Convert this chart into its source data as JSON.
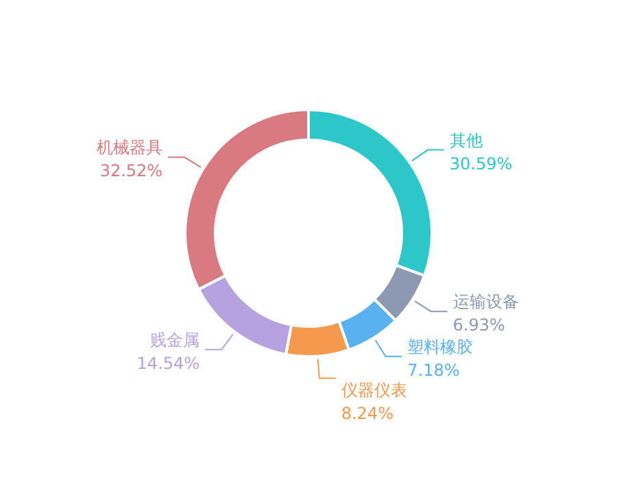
{
  "chart_data": {
    "type": "donut",
    "categories": [
      "其他",
      "运输设备",
      "塑料橡胶",
      "仪器仪表",
      "贱金属",
      "机械器具"
    ],
    "values": [
      30.59,
      6.93,
      7.18,
      8.24,
      14.54,
      32.52
    ],
    "value_labels": [
      "30.59%",
      "6.93%",
      "7.18%",
      "8.24%",
      "14.54%",
      "32.52%"
    ],
    "colors": [
      "#2ec7c9",
      "#8d98b3",
      "#5ab1ef",
      "#f5994e",
      "#b6a2de",
      "#d87a80"
    ]
  }
}
